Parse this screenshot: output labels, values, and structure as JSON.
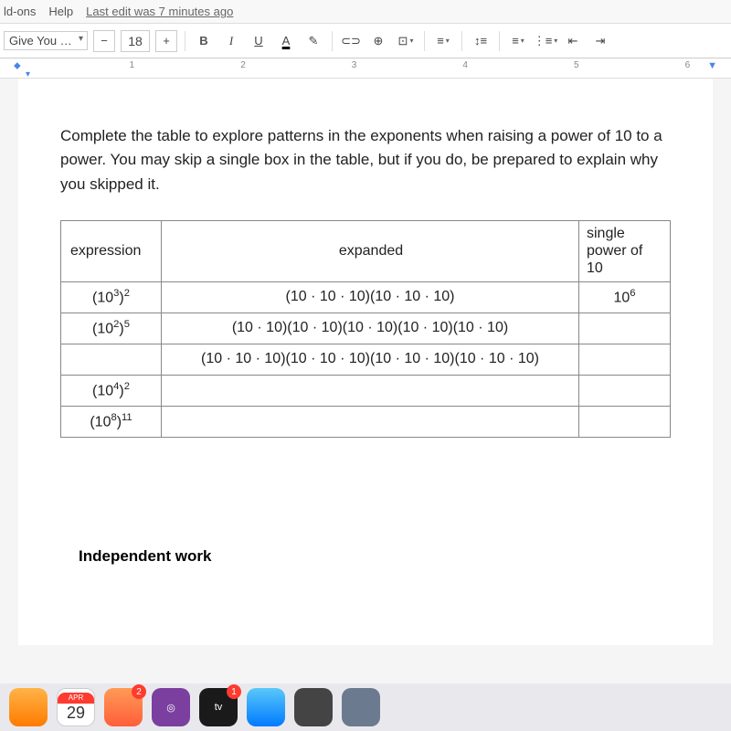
{
  "menubar": {
    "items": [
      "ld-ons",
      "Help"
    ],
    "last_edit": "Last edit was 7 minutes ago"
  },
  "toolbar": {
    "font_name": "Give You Gl...",
    "minus": "−",
    "font_size": "18",
    "plus": "+",
    "bold": "B",
    "italic": "I",
    "underline": "U",
    "textcolor": "A",
    "highlight": "✎",
    "link": "⊂⊃",
    "comment": "⊕",
    "image": "⊡",
    "align": "≡",
    "linesp": "↕≡",
    "numlist": "≡",
    "bullist": "⋮≡",
    "outdent": "⇤",
    "indent": "⇥"
  },
  "ruler": {
    "majors": [
      "1",
      "2",
      "3",
      "4",
      "5",
      "6"
    ]
  },
  "doc": {
    "directions": "Complete the table to explore patterns in the exponents when raising a power of 10 to a power. You may skip a single box in the table, but if you do, be prepared to explain why you skipped it.",
    "headers": {
      "expr": "expression",
      "expd": "expanded",
      "pow": "single power of 10"
    },
    "rows": [
      {
        "expr": "(10<sup>3</sup>)<sup>2</sup>",
        "expd": "(10 · 10 · 10)(10 · 10 · 10)",
        "pow": "10<sup>6</sup>"
      },
      {
        "expr": "(10<sup>2</sup>)<sup>5</sup>",
        "expd": "(10 · 10)(10 · 10)(10 · 10)(10 · 10)(10 · 10)",
        "pow": ""
      },
      {
        "expr": "",
        "expd": "(10 · 10 · 10)(10 · 10 · 10)(10 · 10 · 10)(10 · 10 · 10)",
        "pow": ""
      },
      {
        "expr": "(10<sup>4</sup>)<sup>2</sup>",
        "expd": "",
        "pow": ""
      },
      {
        "expr": "(10<sup>8</sup>)<sup>11</sup>",
        "expd": "",
        "pow": ""
      }
    ],
    "section": "Independent work"
  },
  "dock": {
    "cal_month": "APR",
    "cal_day": "29",
    "tv_label": "tv"
  }
}
